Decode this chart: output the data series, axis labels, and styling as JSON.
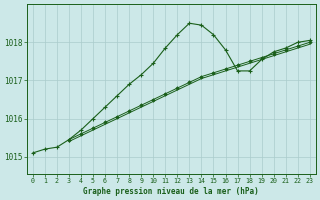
{
  "title": "Graphe pression niveau de la mer (hPa)",
  "bg_color": "#cce8e8",
  "grid_color": "#aacccc",
  "line_color": "#1a5f1a",
  "ylim": [
    1014.55,
    1019.0
  ],
  "yticks": [
    1015,
    1016,
    1017,
    1018
  ],
  "xlim": [
    -0.5,
    23.5
  ],
  "xticks": [
    0,
    1,
    2,
    3,
    4,
    5,
    6,
    7,
    8,
    9,
    10,
    11,
    12,
    13,
    14,
    15,
    16,
    17,
    18,
    19,
    20,
    21,
    22,
    23
  ],
  "curve_x": [
    0,
    1,
    2,
    3,
    4,
    5,
    6,
    7,
    8,
    9,
    10,
    11,
    12,
    13,
    14,
    15,
    16,
    17,
    18,
    19,
    20,
    21,
    22,
    23
  ],
  "curve_y": [
    1015.1,
    1015.2,
    1015.25,
    1015.45,
    1015.7,
    1016.0,
    1016.3,
    1016.6,
    1016.9,
    1017.15,
    1017.45,
    1017.85,
    1018.2,
    1018.5,
    1018.45,
    1018.2,
    1017.8,
    1017.25,
    1017.25,
    1017.55,
    1017.75,
    1017.85,
    1018.0,
    1018.05
  ],
  "straight1_x": [
    3,
    4,
    5,
    6,
    7,
    8,
    9,
    10,
    11,
    12,
    13,
    14,
    15,
    16,
    17,
    18,
    19,
    20,
    21,
    22,
    23
  ],
  "straight1_y": [
    1015.45,
    1015.6,
    1015.75,
    1015.9,
    1016.05,
    1016.2,
    1016.35,
    1016.5,
    1016.65,
    1016.8,
    1016.95,
    1017.1,
    1017.2,
    1017.3,
    1017.4,
    1017.5,
    1017.6,
    1017.7,
    1017.8,
    1017.9,
    1018.0
  ],
  "straight2_x": [
    3,
    4,
    5,
    6,
    7,
    8,
    9,
    10,
    11,
    12,
    13,
    14,
    15,
    16,
    17,
    18,
    19,
    20,
    21,
    22,
    23
  ],
  "straight2_y": [
    1015.4,
    1015.55,
    1015.7,
    1015.85,
    1016.0,
    1016.15,
    1016.3,
    1016.45,
    1016.6,
    1016.75,
    1016.9,
    1017.05,
    1017.15,
    1017.25,
    1017.35,
    1017.45,
    1017.55,
    1017.65,
    1017.75,
    1017.85,
    1017.95
  ]
}
